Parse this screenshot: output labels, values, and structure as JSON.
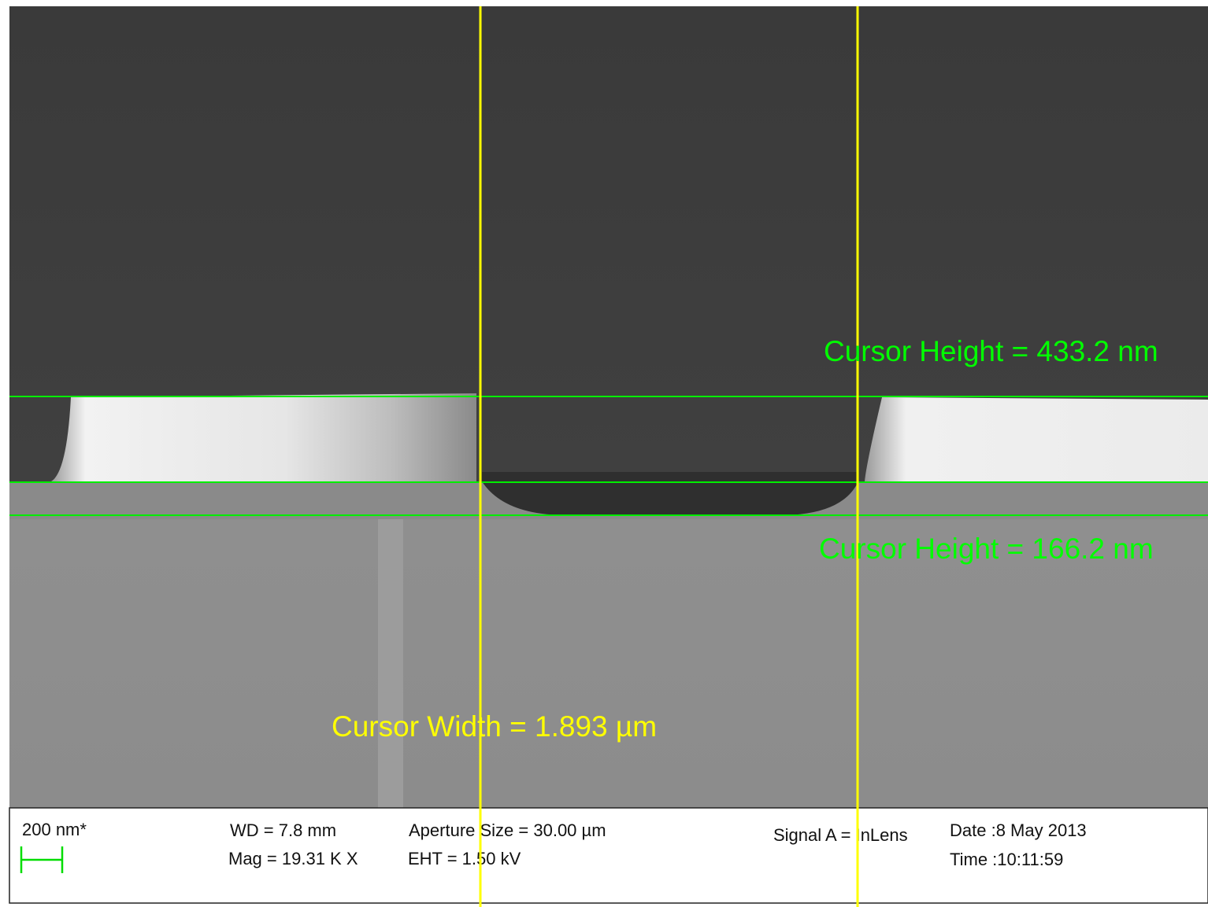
{
  "measurements": {
    "height_top": "Cursor Height = 433.2 nm",
    "height_bottom": "Cursor Height = 166.2 nm",
    "width": "Cursor Width = 1.893 µm"
  },
  "info_bar": {
    "scale_bar": "200 nm*",
    "wd": "WD =  7.8 mm",
    "mag": "Mag =  19.31 K X",
    "aperture": "Aperture Size = 30.00 µm",
    "eht": "EHT =  1.50 kV",
    "signal": "Signal A = InLens",
    "date": "Date :8 May 2013",
    "time": "Time :10:11:59"
  }
}
